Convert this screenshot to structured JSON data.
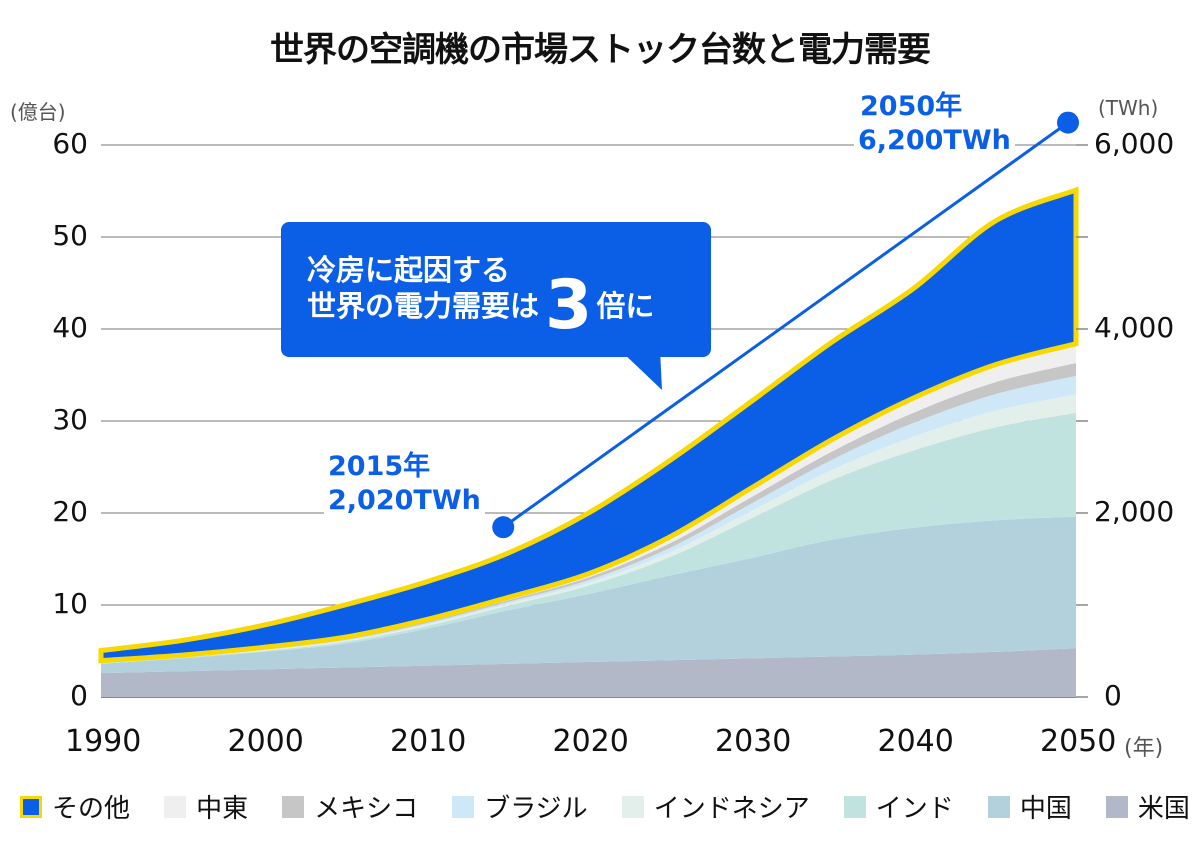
{
  "title": "世界の空調機の市場ストック台数と電力需要",
  "left_axis_unit": "(億台)",
  "right_axis_unit": "(TWh)",
  "x_axis_unit": "(年)",
  "callout": {
    "line1": "冷房に起因する",
    "line2": "世界の電力需要は",
    "big": "3",
    "suffix": "倍に"
  },
  "annotations": {
    "start": {
      "year_label": "2015年",
      "value_label": "2,020TWh"
    },
    "end": {
      "year_label": "2050年",
      "value_label": "6,200TWh"
    }
  },
  "colors": {
    "その他": "#0a5fe6",
    "その他_border": "#f7d800",
    "中東": "#efefef",
    "メキシコ": "#c6c6c6",
    "ブラジル": "#cfe8f7",
    "インドネシア": "#e3efeb",
    "インド": "#c1e3e0",
    "中国": "#b2d1dc",
    "米国": "#b2b8c8",
    "gridline": "#777777",
    "annotation": "#0a5fe6"
  },
  "chart_data": {
    "type": "area",
    "stacked": true,
    "title": "世界の空調機の市場ストック台数と電力需要",
    "xlabel": "(年)",
    "ylabel": "(億台)",
    "y2label": "(TWh)",
    "xlim": [
      1990,
      2050
    ],
    "ylim": [
      0,
      60
    ],
    "y2lim": [
      0,
      6000
    ],
    "x_ticks": [
      "1990",
      "2000",
      "2010",
      "2020",
      "2030",
      "2040",
      "2050"
    ],
    "y_ticks": [
      "0",
      "10",
      "20",
      "30",
      "40",
      "50",
      "60"
    ],
    "y2_ticks": [
      "0",
      "2,000",
      "4,000",
      "6,000"
    ],
    "grid": true,
    "legend_position": "bottom",
    "x": [
      1990,
      1995,
      2000,
      2005,
      2010,
      2015,
      2020,
      2025,
      2030,
      2035,
      2040,
      2045,
      2050
    ],
    "series": [
      {
        "name": "米国",
        "values": [
          2.6,
          2.8,
          3.0,
          3.2,
          3.4,
          3.6,
          3.8,
          4.0,
          4.2,
          4.4,
          4.6,
          4.9,
          5.3
        ]
      },
      {
        "name": "中国",
        "values": [
          1.0,
          1.4,
          1.9,
          2.6,
          4.0,
          5.8,
          7.4,
          9.2,
          10.9,
          12.7,
          13.8,
          14.3,
          14.3
        ]
      },
      {
        "name": "インド",
        "values": [
          0.1,
          0.1,
          0.1,
          0.2,
          0.3,
          0.5,
          0.9,
          2.0,
          4.3,
          6.5,
          8.4,
          10.1,
          11.3
        ]
      },
      {
        "name": "インドネシア",
        "values": [
          0.05,
          0.05,
          0.1,
          0.1,
          0.15,
          0.2,
          0.3,
          0.5,
          0.8,
          1.1,
          1.5,
          1.8,
          2.0
        ]
      },
      {
        "name": "ブラジル",
        "values": [
          0.05,
          0.05,
          0.1,
          0.1,
          0.15,
          0.2,
          0.3,
          0.5,
          0.8,
          1.1,
          1.5,
          1.8,
          2.0
        ]
      },
      {
        "name": "メキシコ",
        "values": [
          0.05,
          0.05,
          0.1,
          0.1,
          0.15,
          0.2,
          0.3,
          0.5,
          0.7,
          0.9,
          1.1,
          1.3,
          1.4
        ]
      },
      {
        "name": "中東",
        "values": [
          0.1,
          0.1,
          0.1,
          0.2,
          0.25,
          0.3,
          0.4,
          0.7,
          1.0,
          1.3,
          1.6,
          1.9,
          2.1
        ]
      },
      {
        "name": "その他",
        "values": [
          1.1,
          1.6,
          2.4,
          3.5,
          4.1,
          4.8,
          6.6,
          8.3,
          9.4,
          10.6,
          11.9,
          15.6,
          16.7
        ]
      }
    ],
    "power_demand_line": {
      "axis": "right",
      "unit": "TWh",
      "points": [
        {
          "x": 2015,
          "y": 2020,
          "label": "2015年 2,020TWh"
        },
        {
          "x": 2050,
          "y": 6200,
          "label": "2050年 6,200TWh"
        }
      ]
    },
    "annotation_text": "冷房に起因する世界の電力需要は3倍に"
  },
  "legend": [
    {
      "label": "その他",
      "key": "その他"
    },
    {
      "label": "中東",
      "key": "中東"
    },
    {
      "label": "メキシコ",
      "key": "メキシコ"
    },
    {
      "label": "ブラジル",
      "key": "ブラジル"
    },
    {
      "label": "インドネシア",
      "key": "インドネシア"
    },
    {
      "label": "インド",
      "key": "インド"
    },
    {
      "label": "中国",
      "key": "中国"
    },
    {
      "label": "米国",
      "key": "米国"
    }
  ]
}
